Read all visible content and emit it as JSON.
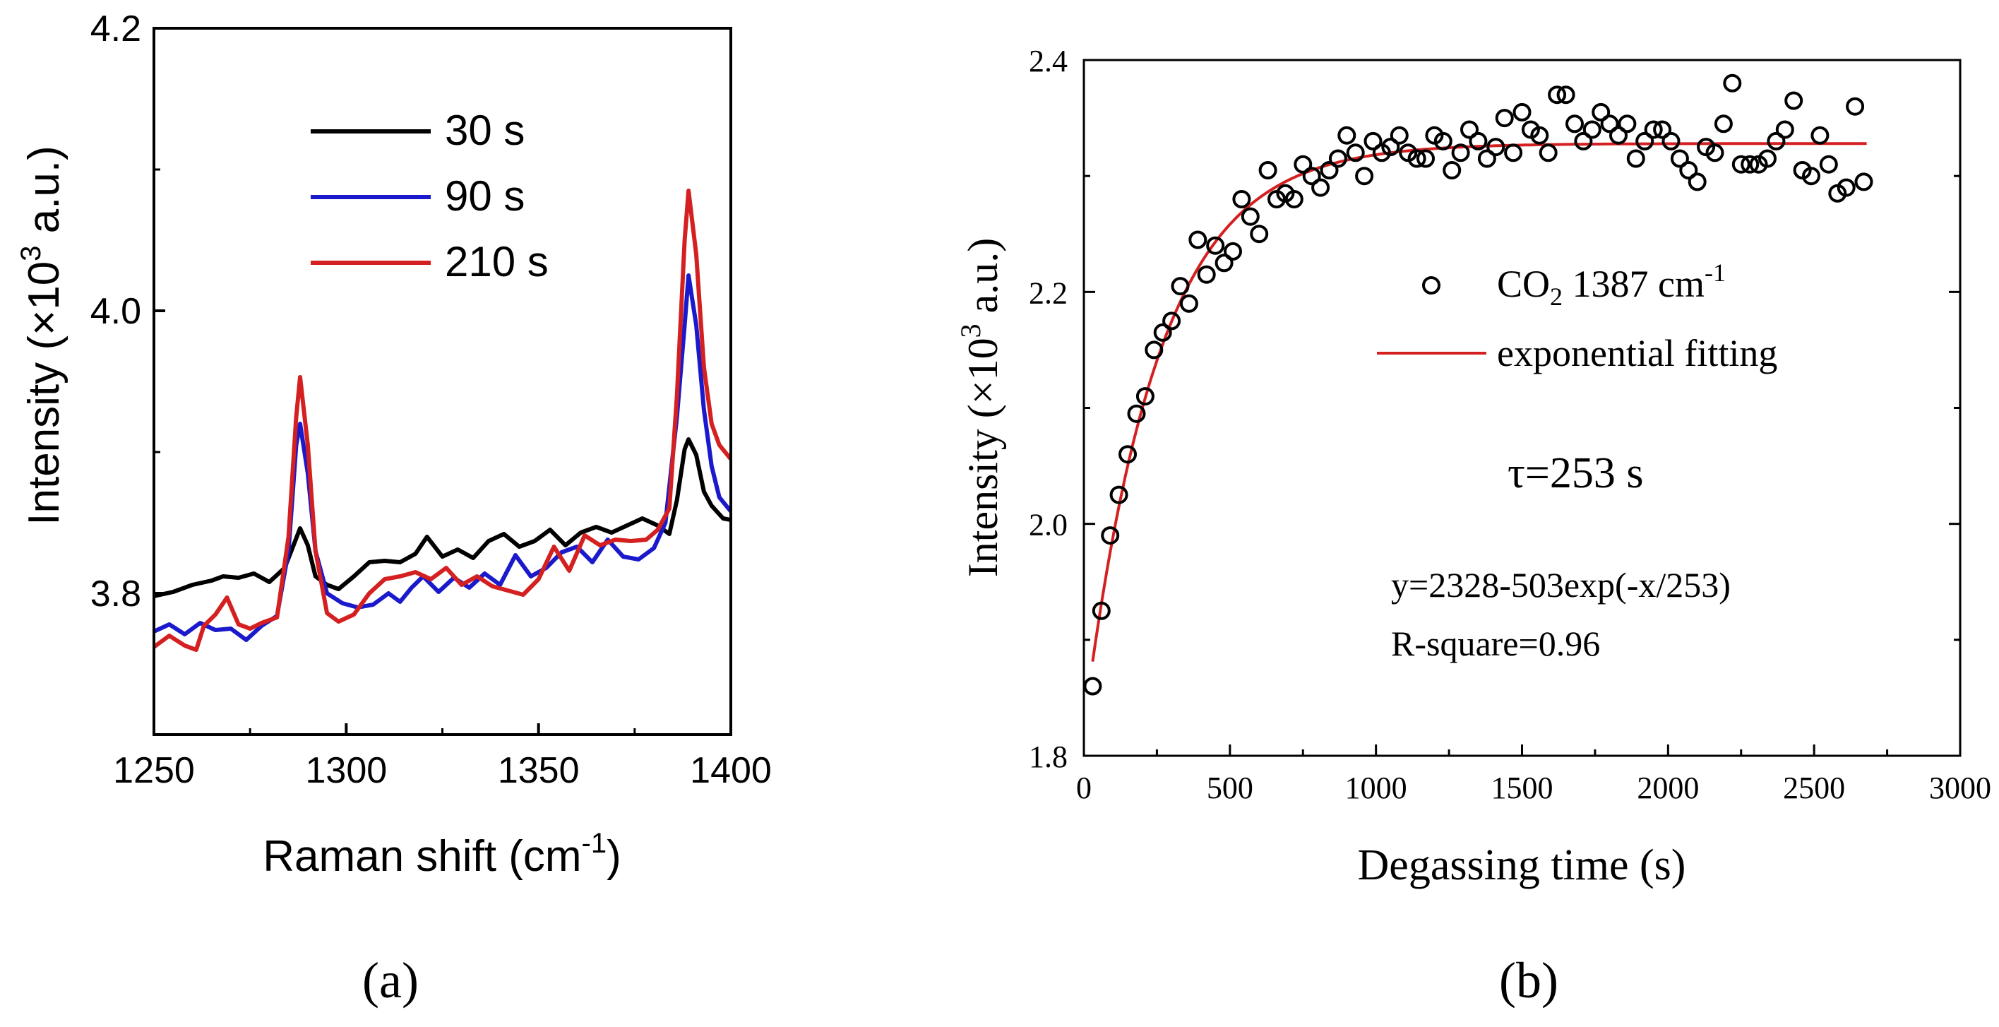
{
  "chart_data": [
    {
      "id": "a",
      "type": "line",
      "panel_label": "(a)",
      "xlabel": "Raman shift (cm",
      "xlabel_sup": "-1",
      "xlabel_end": ")",
      "ylabel": "Intensity (×10",
      "ylabel_sup": "3",
      "ylabel_end": " a.u.)",
      "xlim": [
        1250,
        1400
      ],
      "ylim": [
        3.7,
        4.2
      ],
      "xticks": [
        1250,
        1300,
        1350,
        1400
      ],
      "yticks": [
        3.8,
        4.0,
        4.2
      ],
      "legend_position": "top-left",
      "series": [
        {
          "name": "30 s",
          "color": "#000000",
          "x": [
            1250,
            1255,
            1260,
            1265,
            1268,
            1272,
            1276,
            1280,
            1284,
            1286,
            1288,
            1290,
            1292,
            1295,
            1298,
            1302,
            1306,
            1310,
            1314,
            1318,
            1321,
            1325,
            1329,
            1333,
            1337,
            1341,
            1345,
            1349,
            1353,
            1357,
            1361,
            1365,
            1369,
            1373,
            1377,
            1381,
            1384,
            1386,
            1388,
            1389,
            1391,
            1393,
            1395,
            1398,
            1400
          ],
          "y": [
            3.798,
            3.801,
            3.806,
            3.809,
            3.812,
            3.811,
            3.814,
            3.808,
            3.818,
            3.832,
            3.846,
            3.834,
            3.812,
            3.806,
            3.803,
            3.812,
            3.822,
            3.823,
            3.822,
            3.828,
            3.84,
            3.826,
            3.831,
            3.825,
            3.837,
            3.842,
            3.833,
            3.837,
            3.845,
            3.834,
            3.843,
            3.847,
            3.843,
            3.848,
            3.853,
            3.848,
            3.842,
            3.866,
            3.902,
            3.909,
            3.898,
            3.872,
            3.862,
            3.853,
            3.852
          ]
        },
        {
          "name": "90 s",
          "color": "#1a1acc",
          "x": [
            1250,
            1254,
            1258,
            1262,
            1266,
            1270,
            1274,
            1278,
            1282,
            1285,
            1287,
            1288,
            1290,
            1292,
            1295,
            1299,
            1303,
            1307,
            1311,
            1314,
            1317,
            1320,
            1324,
            1328,
            1332,
            1336,
            1340,
            1344,
            1348,
            1352,
            1356,
            1360,
            1364,
            1368,
            1372,
            1376,
            1380,
            1383,
            1386,
            1388,
            1389,
            1391,
            1393,
            1395,
            1397,
            1400
          ],
          "y": [
            3.773,
            3.778,
            3.771,
            3.779,
            3.774,
            3.775,
            3.767,
            3.777,
            3.784,
            3.83,
            3.905,
            3.92,
            3.885,
            3.83,
            3.8,
            3.793,
            3.79,
            3.792,
            3.8,
            3.794,
            3.804,
            3.812,
            3.801,
            3.811,
            3.804,
            3.814,
            3.806,
            3.827,
            3.812,
            3.818,
            3.829,
            3.833,
            3.822,
            3.838,
            3.826,
            3.824,
            3.832,
            3.85,
            3.925,
            3.99,
            4.025,
            3.99,
            3.93,
            3.89,
            3.868,
            3.858
          ]
        },
        {
          "name": "210 s",
          "color": "#d42020",
          "x": [
            1250,
            1254,
            1258,
            1261,
            1263,
            1266,
            1269,
            1272,
            1275,
            1278,
            1282,
            1285,
            1287,
            1288,
            1290,
            1292,
            1295,
            1298,
            1302,
            1306,
            1310,
            1314,
            1318,
            1322,
            1326,
            1330,
            1334,
            1338,
            1342,
            1346,
            1350,
            1354,
            1358,
            1362,
            1366,
            1370,
            1374,
            1378,
            1381,
            1384,
            1386,
            1388,
            1389,
            1391,
            1393,
            1395,
            1397,
            1400
          ],
          "y": [
            3.762,
            3.77,
            3.763,
            3.76,
            3.777,
            3.785,
            3.797,
            3.778,
            3.775,
            3.779,
            3.783,
            3.84,
            3.925,
            3.953,
            3.905,
            3.83,
            3.786,
            3.78,
            3.785,
            3.8,
            3.81,
            3.812,
            3.815,
            3.81,
            3.818,
            3.806,
            3.812,
            3.805,
            3.802,
            3.799,
            3.81,
            3.833,
            3.816,
            3.841,
            3.834,
            3.838,
            3.837,
            3.838,
            3.845,
            3.86,
            3.94,
            4.05,
            4.085,
            4.04,
            3.96,
            3.92,
            3.905,
            3.895
          ]
        }
      ]
    },
    {
      "id": "b",
      "type": "scatter",
      "panel_label": "(b)",
      "xlabel": "Degassing time (s)",
      "ylabel": "Intensity (×10",
      "ylabel_sup": "3",
      "ylabel_end": " a.u.)",
      "xlim": [
        0,
        3000
      ],
      "ylim": [
        1.8,
        2.4
      ],
      "xticks": [
        0,
        500,
        1000,
        1500,
        2000,
        2500,
        3000
      ],
      "yticks": [
        1.8,
        2.0,
        2.2,
        2.4
      ],
      "legend_position": "center-right",
      "scatter_series": {
        "name": "CO",
        "name_sub": "2",
        "name_rest": " 1387 cm",
        "name_sup": "-1",
        "marker": "open-circle",
        "color": "#000000",
        "points": [
          [
            30,
            1.86
          ],
          [
            60,
            1.925
          ],
          [
            90,
            1.99
          ],
          [
            120,
            2.025
          ],
          [
            150,
            2.06
          ],
          [
            180,
            2.095
          ],
          [
            210,
            2.11
          ],
          [
            240,
            2.15
          ],
          [
            270,
            2.165
          ],
          [
            300,
            2.175
          ],
          [
            330,
            2.205
          ],
          [
            360,
            2.19
          ],
          [
            390,
            2.245
          ],
          [
            420,
            2.215
          ],
          [
            450,
            2.24
          ],
          [
            480,
            2.225
          ],
          [
            510,
            2.235
          ],
          [
            540,
            2.28
          ],
          [
            570,
            2.265
          ],
          [
            600,
            2.25
          ],
          [
            630,
            2.305
          ],
          [
            660,
            2.28
          ],
          [
            690,
            2.285
          ],
          [
            720,
            2.28
          ],
          [
            750,
            2.31
          ],
          [
            780,
            2.3
          ],
          [
            810,
            2.29
          ],
          [
            840,
            2.305
          ],
          [
            870,
            2.315
          ],
          [
            900,
            2.335
          ],
          [
            930,
            2.32
          ],
          [
            960,
            2.3
          ],
          [
            990,
            2.33
          ],
          [
            1020,
            2.32
          ],
          [
            1050,
            2.325
          ],
          [
            1080,
            2.335
          ],
          [
            1110,
            2.32
          ],
          [
            1140,
            2.315
          ],
          [
            1170,
            2.315
          ],
          [
            1200,
            2.335
          ],
          [
            1230,
            2.33
          ],
          [
            1260,
            2.305
          ],
          [
            1290,
            2.32
          ],
          [
            1320,
            2.34
          ],
          [
            1350,
            2.33
          ],
          [
            1380,
            2.315
          ],
          [
            1410,
            2.325
          ],
          [
            1440,
            2.35
          ],
          [
            1470,
            2.32
          ],
          [
            1500,
            2.355
          ],
          [
            1530,
            2.34
          ],
          [
            1560,
            2.335
          ],
          [
            1590,
            2.32
          ],
          [
            1620,
            2.37
          ],
          [
            1650,
            2.37
          ],
          [
            1680,
            2.345
          ],
          [
            1710,
            2.33
          ],
          [
            1740,
            2.34
          ],
          [
            1770,
            2.355
          ],
          [
            1800,
            2.345
          ],
          [
            1830,
            2.335
          ],
          [
            1860,
            2.345
          ],
          [
            1890,
            2.315
          ],
          [
            1920,
            2.33
          ],
          [
            1950,
            2.34
          ],
          [
            1980,
            2.34
          ],
          [
            2010,
            2.33
          ],
          [
            2040,
            2.315
          ],
          [
            2070,
            2.305
          ],
          [
            2100,
            2.295
          ],
          [
            2130,
            2.325
          ],
          [
            2160,
            2.32
          ],
          [
            2190,
            2.345
          ],
          [
            2220,
            2.38
          ],
          [
            2250,
            2.31
          ],
          [
            2280,
            2.31
          ],
          [
            2310,
            2.31
          ],
          [
            2340,
            2.315
          ],
          [
            2370,
            2.33
          ],
          [
            2400,
            2.34
          ],
          [
            2430,
            2.365
          ],
          [
            2460,
            2.305
          ],
          [
            2490,
            2.3
          ],
          [
            2520,
            2.335
          ],
          [
            2550,
            2.31
          ],
          [
            2580,
            2.285
          ],
          [
            2610,
            2.29
          ],
          [
            2640,
            2.36
          ],
          [
            2670,
            2.295
          ]
        ]
      },
      "fit_series": {
        "name": "exponential fitting",
        "color": "#d42020",
        "equation": {
          "a": 2328,
          "b": 503,
          "tau": 253
        },
        "x_range": [
          30,
          2680
        ]
      },
      "annotations": {
        "tau": "τ=253 s",
        "equation": "y=2328-503exp(-x/253)",
        "rsquare": "R-square=0.96"
      }
    }
  ]
}
